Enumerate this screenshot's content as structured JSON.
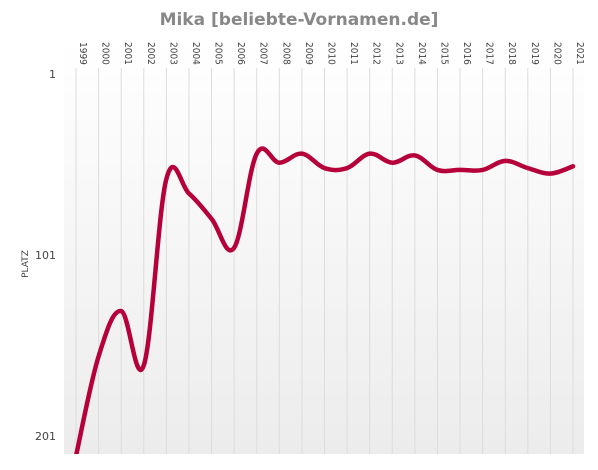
{
  "chart_data": {
    "type": "line",
    "title": "Mika [beliebte-Vornamen.de]",
    "ylabel": "PLATZ",
    "xlabel": "",
    "y_reversed": true,
    "ylim": [
      1,
      211
    ],
    "y_ticks": [
      "1",
      "101",
      "201"
    ],
    "x": [
      "1999",
      "2000",
      "2001",
      "2002",
      "2003",
      "2004",
      "2005",
      "2006",
      "2007",
      "2008",
      "2009",
      "2010",
      "2011",
      "2012",
      "2013",
      "2014",
      "2015",
      "2016",
      "2017",
      "2018",
      "2019",
      "2020",
      "2021"
    ],
    "series": [
      {
        "values": [
          212,
          157,
          132,
          162,
          59,
          67,
          81,
          97,
          45,
          50,
          45,
          53,
          53,
          45,
          50,
          46,
          54,
          54,
          54,
          49,
          53,
          56,
          52
        ],
        "color": "#b5003a"
      }
    ],
    "grid": true,
    "legend": "none"
  }
}
